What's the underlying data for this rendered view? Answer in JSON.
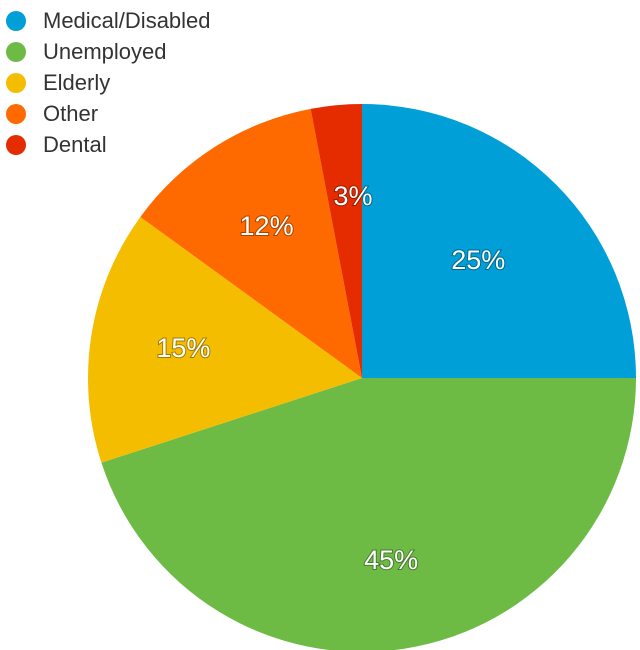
{
  "chart_data": {
    "type": "pie",
    "legend_position": "top-left",
    "slices": [
      {
        "label": "Medical/Disabled",
        "value": 25,
        "display": "25%",
        "color": "#009fd8"
      },
      {
        "label": "Unemployed",
        "value": 45,
        "display": "45%",
        "color": "#6dbb45"
      },
      {
        "label": "Elderly",
        "value": 15,
        "display": "15%",
        "color": "#f5bd00"
      },
      {
        "label": "Other",
        "value": 12,
        "display": "12%",
        "color": "#ff6a00"
      },
      {
        "label": "Dental",
        "value": 3,
        "display": "3%",
        "color": "#e52b00"
      }
    ]
  }
}
